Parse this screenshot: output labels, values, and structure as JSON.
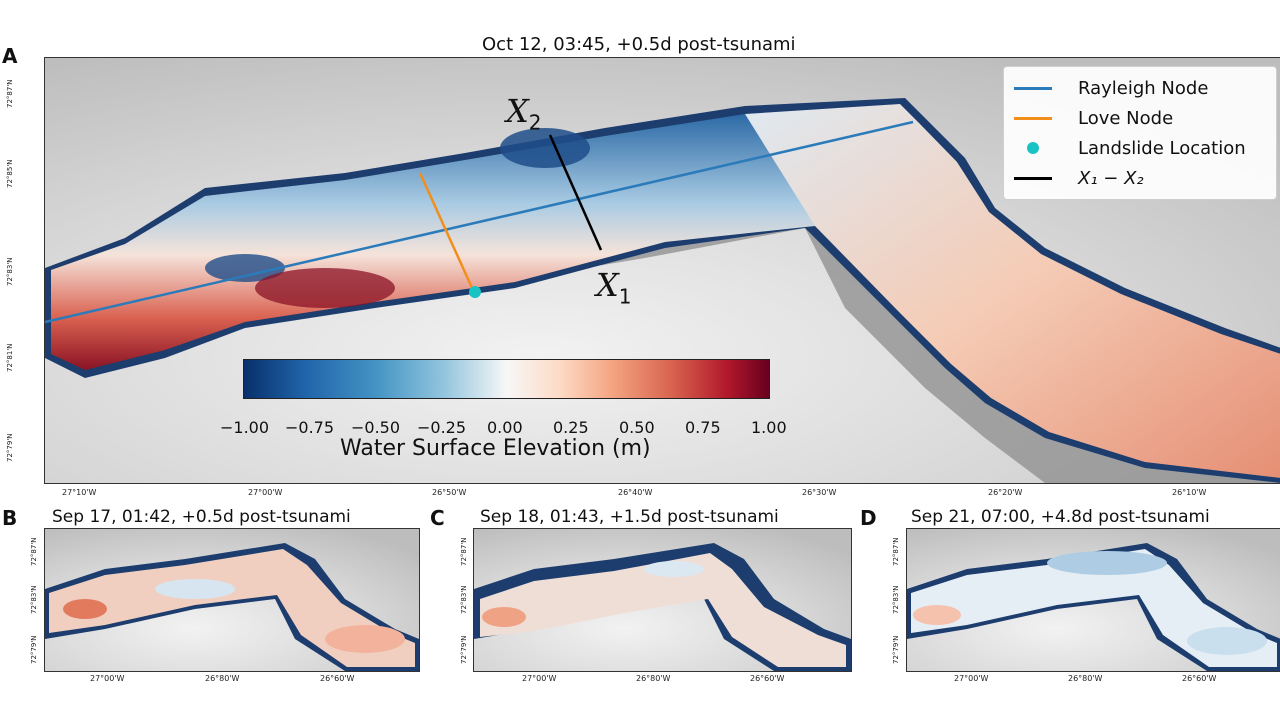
{
  "panels": {
    "A": {
      "letter": "A",
      "title": "Oct 12, 03:45, +0.5d post-tsunami",
      "x_ticks": [
        "27°10'W",
        "27°00'W",
        "26°50'W",
        "26°40'W",
        "26°30'W",
        "26°20'W",
        "26°10'W"
      ],
      "y_ticks": [
        "72°87'N",
        "72°85'N",
        "72°83'N",
        "72°81'N",
        "72°79'N"
      ],
      "annotation_x2": {
        "sym": "X",
        "sub": "2"
      },
      "annotation_x1": {
        "sym": "X",
        "sub": "1"
      }
    },
    "B": {
      "letter": "B",
      "title": "Sep 17, 01:42, +0.5d post-tsunami",
      "x_ticks": [
        "27°00'W",
        "26°80'W",
        "26°60'W"
      ],
      "y_ticks": [
        "72°87'N",
        "72°83'N",
        "72°79'N"
      ]
    },
    "C": {
      "letter": "C",
      "title": "Sep 18, 01:43, +1.5d post-tsunami",
      "x_ticks": [
        "27°00'W",
        "26°80'W",
        "26°60'W"
      ],
      "y_ticks": [
        "72°87'N",
        "72°83'N",
        "72°79'N"
      ]
    },
    "D": {
      "letter": "D",
      "title": "Sep 21, 07:00, +4.8d post-tsunami",
      "x_ticks": [
        "27°00'W",
        "26°80'W",
        "26°60'W"
      ],
      "y_ticks": [
        "72°87'N",
        "72°83'N",
        "72°79'N"
      ]
    }
  },
  "legend": {
    "rayleigh": {
      "label": "Rayleigh Node",
      "color": "#2b7bba"
    },
    "love": {
      "label": "Love Node",
      "color": "#f28e1c"
    },
    "landslide": {
      "label": "Landslide Location",
      "color": "#19c3c3"
    },
    "transect": {
      "label": "X₁ − X₂",
      "color": "#000000"
    }
  },
  "colorbar": {
    "label": "Water Surface Elevation (m)",
    "ticks": [
      "−1.00",
      "−0.75",
      "−0.50",
      "−0.25",
      "0.00",
      "0.25",
      "0.50",
      "0.75",
      "1.00"
    ],
    "min": -1.0,
    "max": 1.0,
    "colormap": "RdBu_r"
  }
}
